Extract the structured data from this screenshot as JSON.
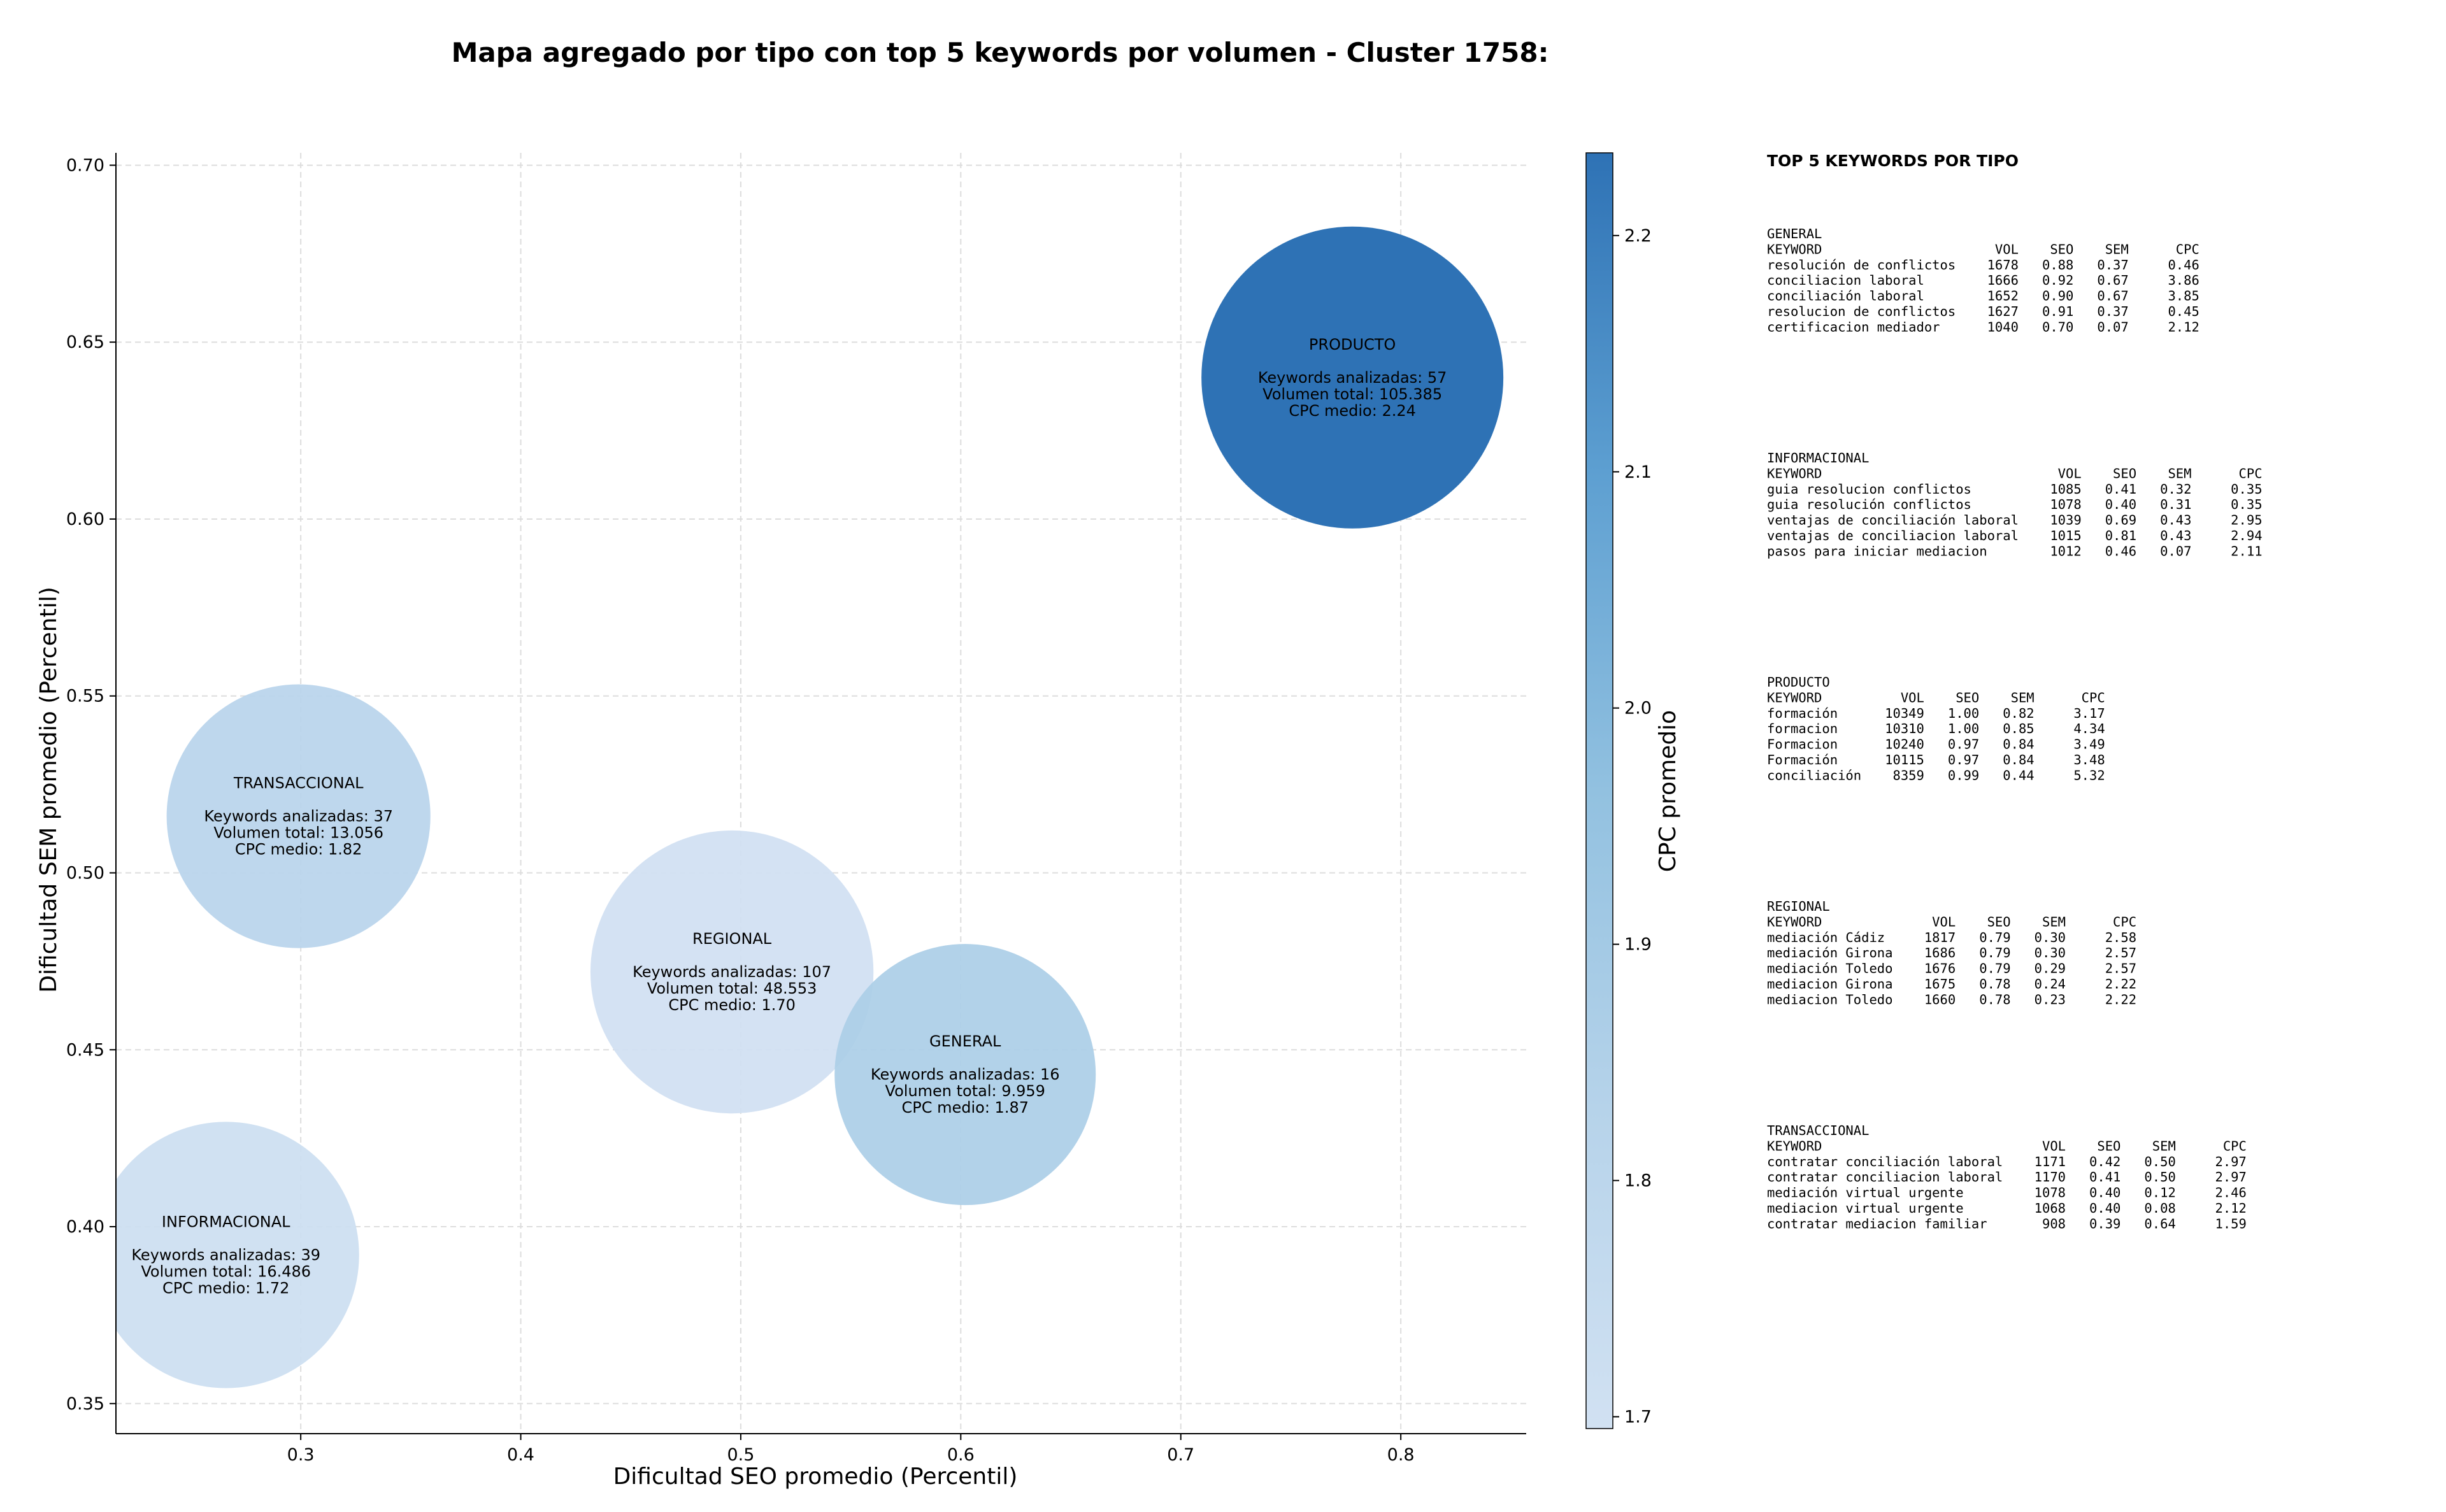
{
  "chart_data": {
    "type": "scatter",
    "subtype": "bubble",
    "title": "Mapa agregado por tipo con top 5 keywords por volumen - Cluster 1758:",
    "xlabel": "Dificultad SEO promedio (Percentil)",
    "ylabel": "Dificultad SEM promedio (Percentil)",
    "xlim": [
      0.216,
      0.857
    ],
    "ylim": [
      0.3415,
      0.7035
    ],
    "xticks": [
      0.3,
      0.4,
      0.5,
      0.6,
      0.7,
      0.8
    ],
    "xtick_labels": [
      "0.3",
      "0.4",
      "0.5",
      "0.6",
      "0.7",
      "0.8"
    ],
    "yticks": [
      0.35,
      0.4,
      0.45,
      0.5,
      0.55,
      0.6,
      0.65,
      0.7
    ],
    "ytick_labels": [
      "0.35",
      "0.40",
      "0.45",
      "0.50",
      "0.55",
      "0.60",
      "0.65",
      "0.70"
    ],
    "grid": true,
    "size_encodes": "Volumen total",
    "color_encodes": "CPC medio",
    "colorbar": {
      "label": "CPC promedio",
      "min": 1.695,
      "max": 2.235,
      "ticks": [
        1.7,
        1.8,
        1.9,
        2.0,
        2.1,
        2.2
      ],
      "tick_labels": [
        "1.7",
        "1.8",
        "1.9",
        "2.0",
        "2.1",
        "2.2"
      ],
      "colormap": "Blues",
      "color_low": "#d1e1f2",
      "color_high": "#2e72b5"
    },
    "points": [
      {
        "name": "PRODUCTO",
        "x": 0.778,
        "y": 0.64,
        "keywords": 57,
        "volume": 105385,
        "lines": [
          "PRODUCTO",
          "",
          "Keywords analizadas: 57",
          "Volumen total: 105.385",
          "CPC medio: 2.24"
        ],
        "cpc": 2.24
      },
      {
        "name": "TRANSACCIONAL",
        "x": 0.299,
        "y": 0.516,
        "keywords": 37,
        "volume": 13056,
        "lines": [
          "TRANSACCIONAL",
          "",
          "Keywords analizadas: 37",
          "Volumen total: 13.056",
          "CPC medio: 1.82"
        ],
        "cpc": 1.82
      },
      {
        "name": "REGIONAL",
        "x": 0.496,
        "y": 0.472,
        "keywords": 107,
        "volume": 48553,
        "lines": [
          "REGIONAL",
          "",
          "Keywords analizadas: 107",
          "Volumen total: 48.553",
          "CPC medio: 1.70"
        ],
        "cpc": 1.7
      },
      {
        "name": "GENERAL",
        "x": 0.602,
        "y": 0.443,
        "keywords": 16,
        "volume": 9959,
        "lines": [
          "GENERAL",
          "",
          "Keywords analizadas: 16",
          "Volumen total: 9.959",
          "CPC medio: 1.87"
        ],
        "cpc": 1.87
      },
      {
        "name": "INFORMACIONAL",
        "x": 0.266,
        "y": 0.392,
        "keywords": 39,
        "volume": 16486,
        "lines": [
          "INFORMACIONAL",
          "",
          "Keywords analizadas: 39",
          "Volumen total: 16.486",
          "CPC medio: 1.72"
        ],
        "cpc": 1.72
      }
    ]
  },
  "side_panel": {
    "heading": "TOP 5 KEYWORDS POR TIPO",
    "blocks": [
      {
        "name": "GENERAL",
        "lines": [
          "GENERAL",
          "KEYWORD                      VOL    SEO    SEM      CPC",
          "resolución de conflictos    1678   0.88   0.37     0.46",
          "conciliacion laboral        1666   0.92   0.67     3.86",
          "conciliación laboral        1652   0.90   0.67     3.85",
          "resolucion de conflictos    1627   0.91   0.37     0.45",
          "certificacion mediador      1040   0.70   0.07     2.12"
        ]
      },
      {
        "name": "INFORMACIONAL",
        "lines": [
          "INFORMACIONAL",
          "KEYWORD                              VOL    SEO    SEM      CPC",
          "guia resolucion conflictos          1085   0.41   0.32     0.35",
          "guia resolución conflictos          1078   0.40   0.31     0.35",
          "ventajas de conciliación laboral    1039   0.69   0.43     2.95",
          "ventajas de conciliacion laboral    1015   0.81   0.43     2.94",
          "pasos para iniciar mediacion        1012   0.46   0.07     2.11"
        ]
      },
      {
        "name": "PRODUCTO",
        "lines": [
          "PRODUCTO",
          "KEYWORD          VOL    SEO    SEM      CPC",
          "formación      10349   1.00   0.82     3.17",
          "formacion      10310   1.00   0.85     4.34",
          "Formacion      10240   0.97   0.84     3.49",
          "Formación      10115   0.97   0.84     3.48",
          "conciliación    8359   0.99   0.44     5.32"
        ]
      },
      {
        "name": "REGIONAL",
        "lines": [
          "REGIONAL",
          "KEYWORD              VOL    SEO    SEM      CPC",
          "mediación Cádiz     1817   0.79   0.30     2.58",
          "mediación Girona    1686   0.79   0.30     2.57",
          "mediación Toledo    1676   0.79   0.29     2.57",
          "mediacion Girona    1675   0.78   0.24     2.22",
          "mediacion Toledo    1660   0.78   0.23     2.22"
        ]
      },
      {
        "name": "TRANSACCIONAL",
        "lines": [
          "TRANSACCIONAL",
          "KEYWORD                            VOL    SEO    SEM      CPC",
          "contratar conciliación laboral    1171   0.42   0.50     2.97",
          "contratar conciliacion laboral    1170   0.41   0.50     2.97",
          "mediación virtual urgente         1078   0.40   0.12     2.46",
          "mediacion virtual urgente         1068   0.40   0.08     2.12",
          "contratar mediacion familiar       908   0.39   0.64     1.59"
        ]
      }
    ]
  }
}
